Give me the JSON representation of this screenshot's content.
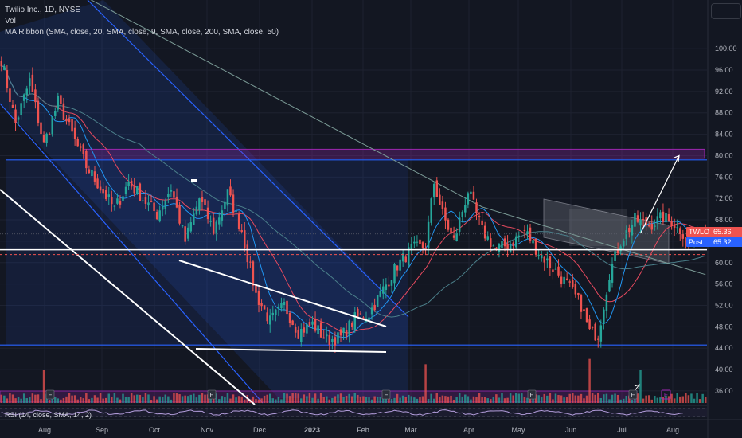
{
  "header": {
    "title_line": "Twilio Inc., 1D, NYSE",
    "vol_label": "Vol",
    "ma_ribbon_label": "MA Ribbon (SMA, close, 20, SMA, close, 9, SMA, close, 200, SMA, close, 50)"
  },
  "rsi_label": "RSI (14, close, SMA, 14, 2)",
  "tags": {
    "ticker": "TWLO",
    "ticker_value": "65.36",
    "post": "Post",
    "post_value": "65.32"
  },
  "colors": {
    "background": "#131722",
    "up": "#26a69a",
    "down": "#ef5350",
    "channel": "#2962ff",
    "sma20": "#e84a5f",
    "sma9": "#2196f3",
    "sma200": "#7b9b96",
    "sma50": "#4b7f8a",
    "zone": "#9c27b0"
  },
  "chart_data": {
    "type": "candlestick",
    "x_tick_labels": [
      "Aug",
      "Sep",
      "Oct",
      "Nov",
      "Dec",
      "2023",
      "Feb",
      "Mar",
      "Apr",
      "May",
      "Jun",
      "Jul",
      "Aug"
    ],
    "y_tick_labels": [
      100,
      96,
      92,
      88,
      84,
      80,
      76,
      72,
      68,
      64,
      60,
      56,
      52,
      48,
      44,
      40,
      36
    ],
    "ylim": [
      34.5,
      103
    ],
    "last_price": 65.36,
    "post_price": 65.32,
    "anchors": [
      [
        0,
        98.0
      ],
      [
        5,
        86.0
      ],
      [
        10,
        94.0
      ],
      [
        15,
        82.0
      ],
      [
        20,
        90.0
      ],
      [
        25,
        84.0
      ],
      [
        30,
        78.0
      ],
      [
        35,
        74.0
      ],
      [
        40,
        70.0
      ],
      [
        45,
        75.0
      ],
      [
        50,
        72.0
      ],
      [
        55,
        69.0
      ],
      [
        60,
        74.0
      ],
      [
        65,
        64.0
      ],
      [
        70,
        72.0
      ],
      [
        75,
        66.0
      ],
      [
        80,
        73.0
      ],
      [
        85,
        66.0
      ],
      [
        90,
        54.0
      ],
      [
        95,
        49.0
      ],
      [
        100,
        52.0
      ],
      [
        105,
        47.0
      ],
      [
        110,
        48.5
      ],
      [
        115,
        45.5
      ],
      [
        120,
        46.0
      ],
      [
        125,
        49.5
      ],
      [
        130,
        50.5
      ],
      [
        135,
        55.0
      ],
      [
        140,
        59.5
      ],
      [
        145,
        62.5
      ],
      [
        150,
        63.0
      ],
      [
        153,
        75.0
      ],
      [
        156,
        69.0
      ],
      [
        160,
        64.0
      ],
      [
        165,
        73.5
      ],
      [
        170,
        66.0
      ],
      [
        175,
        62.5
      ],
      [
        180,
        63.5
      ],
      [
        185,
        66.0
      ],
      [
        190,
        62.0
      ],
      [
        195,
        59.0
      ],
      [
        200,
        56.0
      ],
      [
        205,
        52.0
      ],
      [
        208,
        47.0
      ],
      [
        211,
        46.5
      ],
      [
        215,
        58.0
      ],
      [
        219,
        64.0
      ],
      [
        224,
        68.0
      ],
      [
        229,
        67.0
      ],
      [
        234,
        68.5
      ],
      [
        239,
        66.5
      ],
      [
        243,
        63.5
      ],
      [
        246,
        65.5
      ],
      [
        249,
        65.4
      ]
    ],
    "volume_spikes": [
      [
        15,
        40.0
      ],
      [
        150,
        41.0
      ],
      [
        208,
        42.0
      ],
      [
        226,
        40.0
      ]
    ],
    "levels": {
      "zone_top": 80.5,
      "zone_bottom": 79.5,
      "support": 62.4,
      "dashed": 61.5,
      "lower_channel": 44.6
    },
    "projection_target": 80.0
  }
}
